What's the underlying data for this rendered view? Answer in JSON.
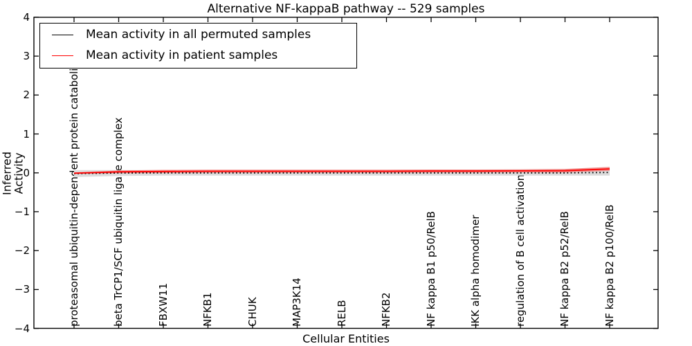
{
  "chart_data": {
    "type": "line",
    "title": "Alternative NF-kappaB pathway -- 529 samples",
    "xlabel": "Cellular Entities",
    "ylabel": "Inferred Activity",
    "ylim": [
      -4,
      4
    ],
    "yticks": [
      4,
      3,
      2,
      1,
      0,
      -1,
      -2,
      -3,
      -4
    ],
    "ytick_labels": [
      "4",
      "3",
      "2",
      "1",
      "0",
      "−1",
      "−2",
      "−3",
      "−4"
    ],
    "grid": false,
    "legend_position": "upper left",
    "categories": [
      "proteasomal ubiquitin-dependent protein catabolic pr",
      "beta TrCP1/SCF ubiquitin ligase complex",
      "FBXW11",
      "NFKB1",
      "CHUK",
      "MAP3K14",
      "RELB",
      "NFKB2",
      "NF kappa B1 p50/RelB",
      "IKK alpha homodimer",
      "regulation of B cell activation",
      "NF kappa B2 p52/RelB",
      "NF kappa B2 p100/RelB"
    ],
    "series": [
      {
        "name": "Mean activity in all permuted samples",
        "color": "#000000",
        "style": "dotted",
        "values": [
          -0.02,
          -0.005,
          0,
          0,
          0,
          0,
          0,
          0,
          0,
          0,
          0,
          0,
          0.01
        ],
        "band_halfwidth": [
          0.09,
          0.075,
          0.07,
          0.07,
          0.07,
          0.07,
          0.07,
          0.07,
          0.07,
          0.07,
          0.07,
          0.07,
          0.08
        ],
        "band_color": "#dcdcdc"
      },
      {
        "name": "Mean activity in patient samples",
        "color": "#ff0000",
        "style": "solid",
        "values": [
          -0.01,
          0.025,
          0.035,
          0.04,
          0.04,
          0.04,
          0.04,
          0.04,
          0.045,
          0.045,
          0.05,
          0.055,
          0.1
        ],
        "band_halfwidth": [
          0.02,
          0.035,
          0.04,
          0.04,
          0.04,
          0.04,
          0.04,
          0.04,
          0.04,
          0.04,
          0.04,
          0.045,
          0.05
        ],
        "band_color": "#f0908e"
      }
    ]
  }
}
